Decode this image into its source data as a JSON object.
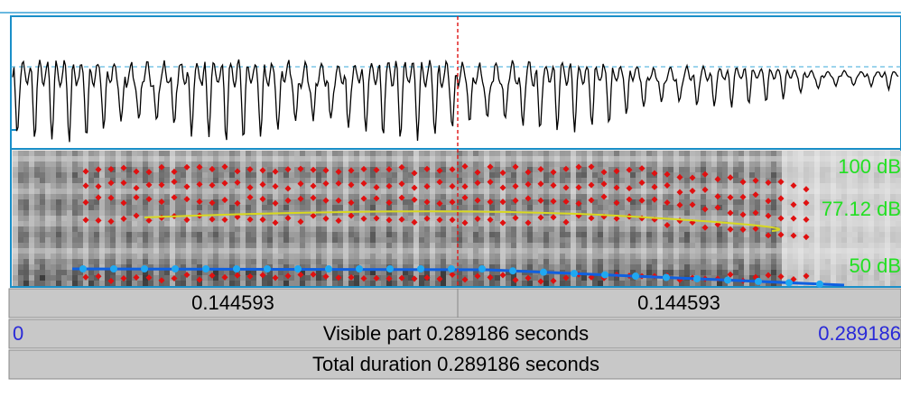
{
  "spectrogram": {
    "labels": [
      "100 dB",
      "77.12 dB",
      "50 dB"
    ]
  },
  "time_bar": {
    "left": "0.144593",
    "right": "0.144593"
  },
  "visible_bar": {
    "start": "0",
    "label": "Visible part 0.289186 seconds",
    "end": "0.289186"
  },
  "total_bar": {
    "label": "Total duration 0.289186 seconds"
  }
}
